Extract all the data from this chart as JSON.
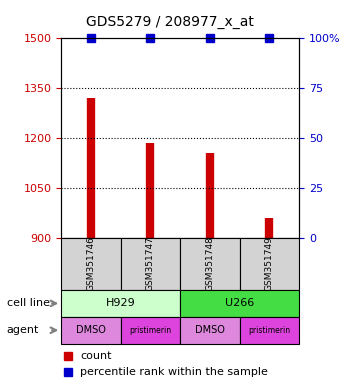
{
  "title": "GDS5279 / 208977_x_at",
  "samples": [
    "GSM351746",
    "GSM351747",
    "GSM351748",
    "GSM351749"
  ],
  "bar_values": [
    1320,
    1185,
    1155,
    960
  ],
  "percentile_values": [
    100,
    100,
    100,
    100
  ],
  "ylim_left": [
    900,
    1500
  ],
  "ylim_right": [
    0,
    100
  ],
  "yticks_left": [
    900,
    1050,
    1200,
    1350,
    1500
  ],
  "yticks_right": [
    0,
    25,
    50,
    75,
    100
  ],
  "ytick_labels_right": [
    "0",
    "25",
    "50",
    "75",
    "100%"
  ],
  "bar_color": "#cc0000",
  "percentile_color": "#0000cc",
  "dotted_lines": [
    1050,
    1200,
    1350
  ],
  "cell_lines": [
    "H929",
    "U266"
  ],
  "cell_line_spans": [
    [
      0,
      1
    ],
    [
      2,
      3
    ]
  ],
  "cell_line_color_h929": "#ccffcc",
  "cell_line_color_u266": "#44dd44",
  "agents": [
    "DMSO",
    "pristimerin",
    "DMSO",
    "pristimerin"
  ],
  "agent_color_dmso": "#dd88dd",
  "agent_color_pristimerin": "#dd44dd",
  "bg_color": "#d3d3d3",
  "label_cell_line": "cell line",
  "label_agent": "agent",
  "legend_count": "count",
  "legend_percentile": "percentile rank within the sample"
}
